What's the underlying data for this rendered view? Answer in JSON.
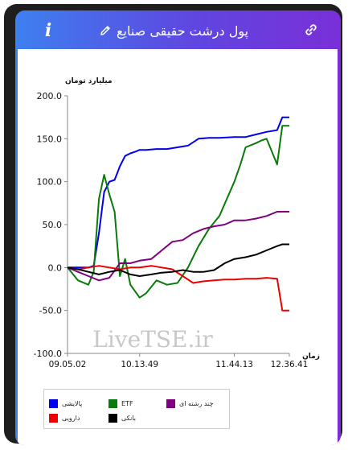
{
  "header": {
    "title": "پول درشت حقیقی صنایع",
    "info_icon": "info-icon",
    "edit_icon": "pencil-icon",
    "link_icon": "link-icon"
  },
  "colors": {
    "accent_start": "#3d80f0",
    "accent_end": "#7a2fd8"
  },
  "chart_data": {
    "type": "line",
    "ylabel": "میلیارد تومان",
    "xlabel": "زمان",
    "ylim": [
      -100,
      200
    ],
    "y_ticks": [
      "200.0",
      "150.0",
      "100.0",
      "50.0",
      "0.0",
      "-50.0",
      "-100.0"
    ],
    "x_ticks": [
      "09.05.02",
      "10.13.49",
      "11.44.13",
      "12.36.41"
    ],
    "watermark": "LiveTSE.ir",
    "grid": false,
    "legend_position": "bottom-left",
    "series": [
      {
        "name": "پالایشی",
        "color": "#0000ee",
        "x": [
          "09.05.02",
          "09.15",
          "09.25",
          "09.30",
          "09.35",
          "09.40",
          "09.45",
          "09.50",
          "09.55",
          "10.00",
          "10.05",
          "10.10",
          "10.13.49",
          "10.20",
          "10.30",
          "10.40",
          "10.50",
          "11.00",
          "11.10",
          "11.20",
          "11.30",
          "11.44.13",
          "11.55",
          "12.05",
          "12.15",
          "12.25",
          "12.30",
          "12.36.41"
        ],
        "values": [
          0,
          0,
          0,
          2,
          40,
          88,
          100,
          102,
          118,
          130,
          133,
          135,
          137,
          137,
          138,
          138,
          140,
          142,
          150,
          151,
          151,
          152,
          152,
          155,
          158,
          160,
          175,
          175
        ]
      },
      {
        "name": "ETF",
        "color": "#0a7a0a",
        "x": [
          "09.05.02",
          "09.15",
          "09.25",
          "09.30",
          "09.35",
          "09.40",
          "09.45",
          "09.50",
          "09.55",
          "10.00",
          "10.05",
          "10.13.49",
          "10.20",
          "10.30",
          "10.40",
          "10.50",
          "11.00",
          "11.10",
          "11.20",
          "11.30",
          "11.44.13",
          "11.50",
          "11.55",
          "12.05",
          "12.10",
          "12.15",
          "12.25",
          "12.30",
          "12.36.41"
        ],
        "values": [
          0,
          -15,
          -20,
          -5,
          80,
          108,
          85,
          65,
          -10,
          10,
          -20,
          -35,
          -30,
          -15,
          -20,
          -18,
          0,
          25,
          45,
          60,
          100,
          120,
          140,
          145,
          148,
          150,
          120,
          165,
          165
        ]
      },
      {
        "name": "چند رشته ای",
        "color": "#800080",
        "x": [
          "09.05.02",
          "09.15",
          "09.25",
          "09.35",
          "09.45",
          "09.55",
          "10.05",
          "10.13.49",
          "10.25",
          "10.35",
          "10.45",
          "10.55",
          "11.05",
          "11.15",
          "11.25",
          "11.35",
          "11.44.13",
          "11.55",
          "12.05",
          "12.15",
          "12.25",
          "12.36.41"
        ],
        "values": [
          0,
          -5,
          -10,
          -15,
          -12,
          5,
          5,
          8,
          10,
          20,
          30,
          32,
          40,
          45,
          48,
          50,
          55,
          55,
          57,
          60,
          65,
          65
        ]
      },
      {
        "name": "دارویی",
        "color": "#ee0000",
        "x": [
          "09.05.02",
          "09.15",
          "09.25",
          "09.35",
          "09.45",
          "09.55",
          "10.05",
          "10.13.49",
          "10.25",
          "10.35",
          "10.45",
          "10.55",
          "11.05",
          "11.15",
          "11.25",
          "11.35",
          "11.44.13",
          "11.55",
          "12.05",
          "12.15",
          "12.25",
          "12.30",
          "12.36.41"
        ],
        "values": [
          0,
          -2,
          0,
          2,
          0,
          -2,
          0,
          0,
          2,
          0,
          -2,
          -10,
          -18,
          -16,
          -15,
          -14,
          -14,
          -13,
          -13,
          -12,
          -13,
          -50,
          -50
        ]
      },
      {
        "name": "بانکی",
        "color": "#000000",
        "x": [
          "09.05.02",
          "09.15",
          "09.25",
          "09.35",
          "09.45",
          "09.55",
          "10.05",
          "10.13.49",
          "10.25",
          "10.35",
          "10.45",
          "10.55",
          "11.05",
          "11.15",
          "11.25",
          "11.35",
          "11.44.13",
          "11.55",
          "12.05",
          "12.15",
          "12.25",
          "12.30",
          "12.36.41"
        ],
        "values": [
          0,
          -2,
          -5,
          -8,
          -5,
          -3,
          -8,
          -10,
          -8,
          -6,
          -5,
          -3,
          -5,
          -5,
          -3,
          5,
          10,
          12,
          15,
          20,
          25,
          27,
          27
        ]
      }
    ]
  }
}
